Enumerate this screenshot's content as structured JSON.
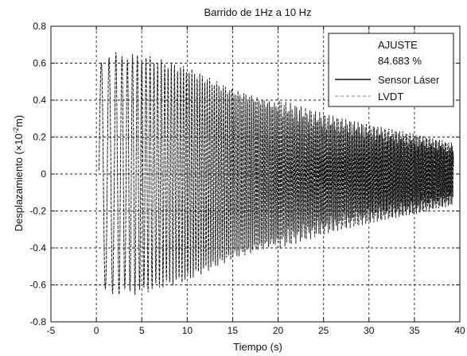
{
  "chart_data": {
    "type": "line",
    "title": "Barrido de 1Hz a 10 Hz",
    "xlabel": "Tiempo (s)",
    "ylabel_main": "Desplazamiento (×10",
    "ylabel_exp": "-2",
    "ylabel_tail": "m)",
    "xlim": [
      -5,
      40
    ],
    "ylim": [
      -0.8,
      0.8
    ],
    "x_ticks": [
      -5,
      0,
      5,
      10,
      15,
      20,
      25,
      30,
      35,
      40
    ],
    "x_tick_labels": [
      "-5",
      "0",
      "5",
      "10",
      "15",
      "20",
      "25",
      "30",
      "35",
      "40"
    ],
    "y_ticks": [
      -0.8,
      -0.6,
      -0.4,
      -0.2,
      0,
      0.2,
      0.4,
      0.6,
      0.8
    ],
    "y_tick_labels": [
      "-0.8",
      "-0.6",
      "-0.4",
      "-0.2",
      "0",
      "0.2",
      "0.4",
      "0.6",
      "0.8"
    ],
    "grid": true,
    "legend_position": "top-right",
    "legend": {
      "heading": "AJUSTE",
      "value": "84.683 %",
      "entries": [
        {
          "name": "Sensor Láser",
          "style": "solid",
          "color": "#111111"
        },
        {
          "name": "LVDT",
          "style": "dashed",
          "color": "#9a9a9a"
        }
      ]
    },
    "signal": {
      "t_start": 0.3,
      "t_end": 39.3,
      "f_start_hz": 1,
      "f_end_hz": 10,
      "envelope": {
        "t": [
          0.3,
          1,
          5,
          10,
          15,
          20,
          25,
          30,
          35,
          39.3
        ],
        "amplitude": [
          0.6,
          0.64,
          0.63,
          0.56,
          0.44,
          0.36,
          0.28,
          0.22,
          0.17,
          0.12
        ]
      }
    },
    "series": [
      {
        "name": "Sensor Láser",
        "color": "#111111"
      },
      {
        "name": "LVDT",
        "color": "#9a9a9a"
      }
    ]
  }
}
